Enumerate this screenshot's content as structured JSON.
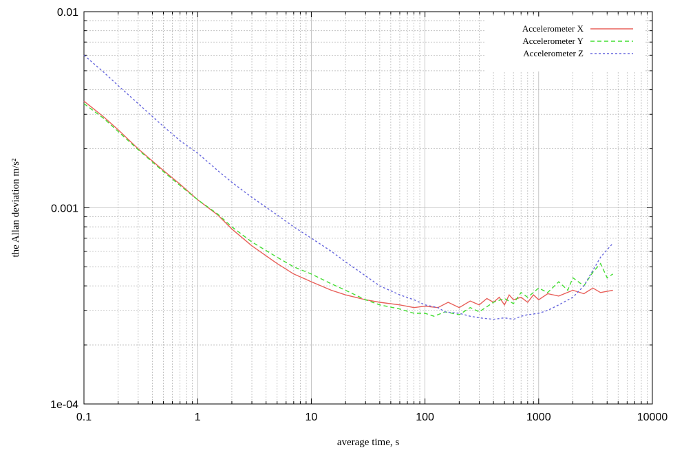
{
  "chart_data": {
    "type": "line",
    "xscale": "log",
    "yscale": "log",
    "xlim": [
      0.1,
      10000
    ],
    "ylim": [
      0.0001,
      0.01
    ],
    "xlabel": "average time, s",
    "ylabel": "the Allan deviation m/s²",
    "xticks": [
      "0.1",
      "1",
      "10",
      "100",
      "1000",
      "10000"
    ],
    "yticks": [
      "1e-04",
      "0.001",
      "0.01"
    ],
    "grid": true,
    "legend_position": "top-right",
    "series": [
      {
        "name": "Accelerometer X",
        "color": "#e8605a",
        "dash": "solid",
        "points": [
          [
            0.1,
            0.0035
          ],
          [
            0.15,
            0.0029
          ],
          [
            0.2,
            0.0025
          ],
          [
            0.3,
            0.002
          ],
          [
            0.5,
            0.00155
          ],
          [
            0.7,
            0.00132
          ],
          [
            1,
            0.0011
          ],
          [
            1.5,
            0.00092
          ],
          [
            2,
            0.00078
          ],
          [
            3,
            0.00064
          ],
          [
            5,
            0.00052
          ],
          [
            7,
            0.00046
          ],
          [
            10,
            0.00042
          ],
          [
            15,
            0.00038
          ],
          [
            20,
            0.00036
          ],
          [
            30,
            0.00034
          ],
          [
            40,
            0.00033
          ],
          [
            60,
            0.00032
          ],
          [
            80,
            0.00031
          ],
          [
            100,
            0.000315
          ],
          [
            130,
            0.00031
          ],
          [
            160,
            0.00033
          ],
          [
            200,
            0.00031
          ],
          [
            250,
            0.000335
          ],
          [
            300,
            0.00032
          ],
          [
            350,
            0.000345
          ],
          [
            400,
            0.00033
          ],
          [
            450,
            0.00035
          ],
          [
            500,
            0.00032
          ],
          [
            550,
            0.00036
          ],
          [
            600,
            0.00034
          ],
          [
            700,
            0.00035
          ],
          [
            800,
            0.00033
          ],
          [
            900,
            0.00036
          ],
          [
            1000,
            0.00034
          ],
          [
            1200,
            0.000365
          ],
          [
            1500,
            0.000355
          ],
          [
            2000,
            0.00038
          ],
          [
            2500,
            0.000365
          ],
          [
            3000,
            0.00039
          ],
          [
            3500,
            0.00037
          ],
          [
            4500,
            0.00038
          ]
        ]
      },
      {
        "name": "Accelerometer Y",
        "color": "#44dd33",
        "dash": "6,4",
        "points": [
          [
            0.1,
            0.0034
          ],
          [
            0.15,
            0.00285
          ],
          [
            0.2,
            0.00245
          ],
          [
            0.3,
            0.00198
          ],
          [
            0.5,
            0.00153
          ],
          [
            0.7,
            0.0013
          ],
          [
            1,
            0.0011
          ],
          [
            1.5,
            0.00093
          ],
          [
            2,
            0.0008
          ],
          [
            3,
            0.00067
          ],
          [
            5,
            0.00056
          ],
          [
            7,
            0.0005
          ],
          [
            10,
            0.00046
          ],
          [
            15,
            0.00041
          ],
          [
            20,
            0.00038
          ],
          [
            30,
            0.00034
          ],
          [
            40,
            0.00032
          ],
          [
            60,
            0.000305
          ],
          [
            80,
            0.00029
          ],
          [
            100,
            0.00029
          ],
          [
            120,
            0.00028
          ],
          [
            150,
            0.000295
          ],
          [
            200,
            0.000285
          ],
          [
            250,
            0.00031
          ],
          [
            300,
            0.000295
          ],
          [
            400,
            0.00033
          ],
          [
            500,
            0.000345
          ],
          [
            600,
            0.000325
          ],
          [
            700,
            0.00037
          ],
          [
            800,
            0.00035
          ],
          [
            1000,
            0.00039
          ],
          [
            1200,
            0.00037
          ],
          [
            1500,
            0.00042
          ],
          [
            1800,
            0.00038
          ],
          [
            2000,
            0.00044
          ],
          [
            2500,
            0.0004
          ],
          [
            3000,
            0.00047
          ],
          [
            3500,
            0.00052
          ],
          [
            4000,
            0.00044
          ],
          [
            4500,
            0.00046
          ]
        ]
      },
      {
        "name": "Accelerometer Z",
        "color": "#6666dd",
        "dash": "3,3",
        "points": [
          [
            0.1,
            0.006
          ],
          [
            0.15,
            0.0049
          ],
          [
            0.2,
            0.0042
          ],
          [
            0.3,
            0.0034
          ],
          [
            0.5,
            0.0026
          ],
          [
            0.7,
            0.0022
          ],
          [
            1,
            0.0019
          ],
          [
            1.5,
            0.00155
          ],
          [
            2,
            0.00135
          ],
          [
            3,
            0.00113
          ],
          [
            5,
            0.00092
          ],
          [
            7,
            0.0008
          ],
          [
            10,
            0.0007
          ],
          [
            15,
            0.0006
          ],
          [
            20,
            0.00053
          ],
          [
            30,
            0.00045
          ],
          [
            40,
            0.0004
          ],
          [
            60,
            0.00036
          ],
          [
            80,
            0.00034
          ],
          [
            100,
            0.00032
          ],
          [
            130,
            0.00031
          ],
          [
            150,
            0.000295
          ],
          [
            200,
            0.00029
          ],
          [
            250,
            0.00028
          ],
          [
            300,
            0.000275
          ],
          [
            400,
            0.00027
          ],
          [
            500,
            0.000275
          ],
          [
            600,
            0.00027
          ],
          [
            700,
            0.00028
          ],
          [
            800,
            0.000285
          ],
          [
            1000,
            0.00029
          ],
          [
            1200,
            0.0003
          ],
          [
            1500,
            0.00032
          ],
          [
            2000,
            0.00035
          ],
          [
            2500,
            0.0004
          ],
          [
            3000,
            0.00048
          ],
          [
            3500,
            0.00056
          ],
          [
            4500,
            0.00066
          ]
        ]
      }
    ]
  }
}
